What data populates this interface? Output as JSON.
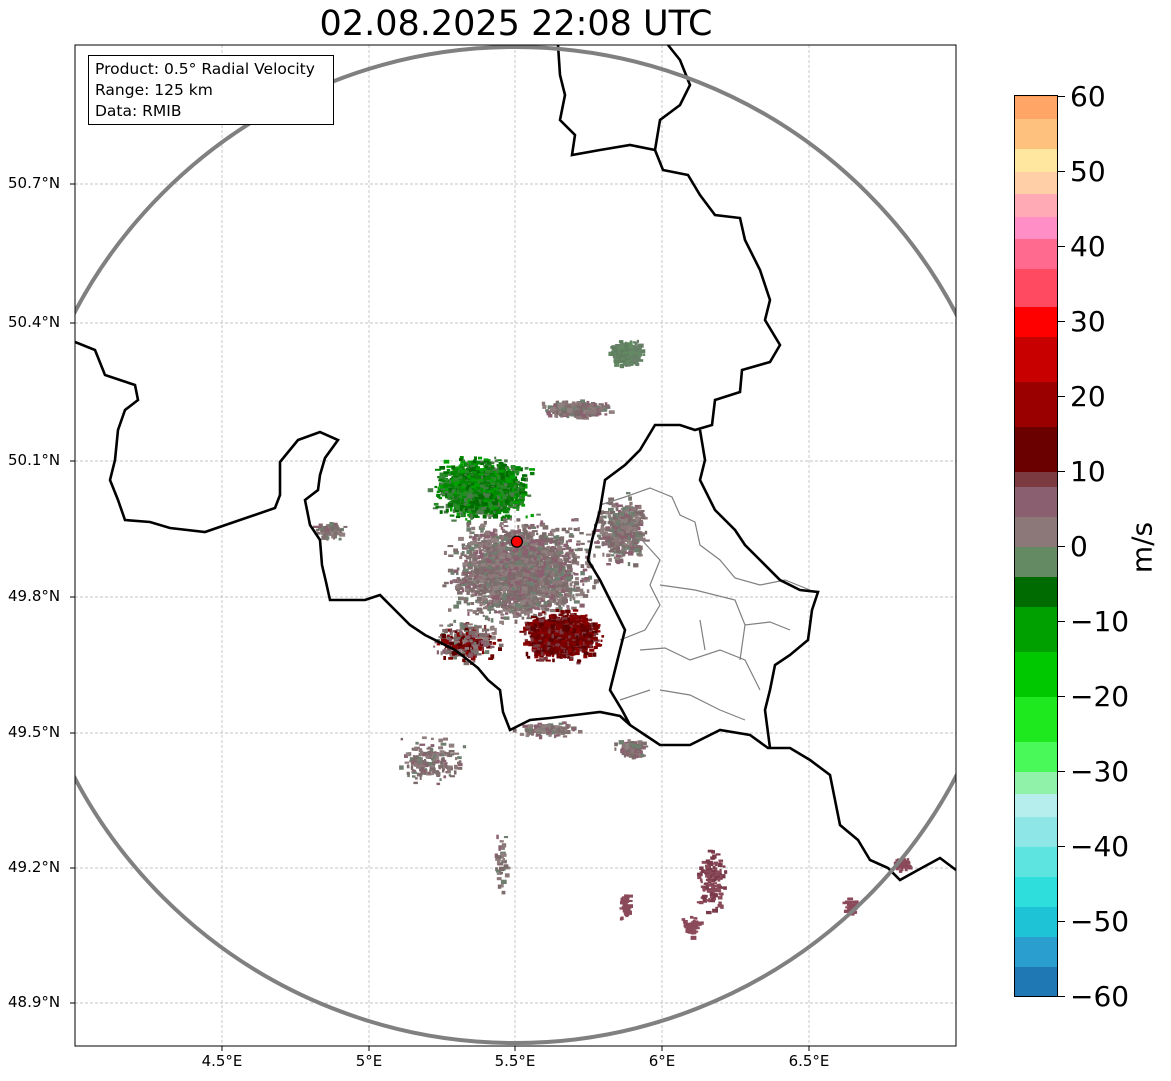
{
  "title": "02.08.2025 22:08 UTC",
  "info": {
    "product": "Product: 0.5° Radial Velocity",
    "range": "Range: 125 km",
    "source": "Data: RMIB"
  },
  "axes": {
    "lat_labels": [
      "50.7°N",
      "50.4°N",
      "50.1°N",
      "49.8°N",
      "49.5°N",
      "49.2°N",
      "48.9°N"
    ],
    "lon_labels": [
      "4.5°E",
      "5°E",
      "5.5°E",
      "6°E",
      "6.5°E"
    ]
  },
  "radar_site": {
    "lon": 5.505,
    "lat": 49.914,
    "color": "#ff0000"
  },
  "colorbar": {
    "unit": "m/s",
    "ticks": [
      "60",
      "50",
      "40",
      "30",
      "20",
      "10",
      "0",
      "−10",
      "−20",
      "−30",
      "−40",
      "−50",
      "−60"
    ],
    "min": -60,
    "max": 60,
    "stops": [
      {
        "v": -60,
        "c": "#1f77b4"
      },
      {
        "v": -56,
        "c": "#2a9fcf"
      },
      {
        "v": -52,
        "c": "#1fc3d6"
      },
      {
        "v": -48,
        "c": "#2ddedd"
      },
      {
        "v": -44,
        "c": "#5de3e0"
      },
      {
        "v": -40,
        "c": "#8ee6e6"
      },
      {
        "v": -36,
        "c": "#b6eeee"
      },
      {
        "v": -33,
        "c": "#8ff2a8"
      },
      {
        "v": -30,
        "c": "#49f95a"
      },
      {
        "v": -26,
        "c": "#1ee81e"
      },
      {
        "v": -20,
        "c": "#00c800"
      },
      {
        "v": -14,
        "c": "#00a000"
      },
      {
        "v": -8,
        "c": "#006b00"
      },
      {
        "v": -4,
        "c": "#648a64"
      },
      {
        "v": 0,
        "c": "#8c7878"
      },
      {
        "v": 4,
        "c": "#8a6070"
      },
      {
        "v": 8,
        "c": "#7a3a40"
      },
      {
        "v": 10,
        "c": "#6b0000"
      },
      {
        "v": 16,
        "c": "#9a0000"
      },
      {
        "v": 22,
        "c": "#c80000"
      },
      {
        "v": 28,
        "c": "#ff0000"
      },
      {
        "v": 32,
        "c": "#ff4a62"
      },
      {
        "v": 37,
        "c": "#ff6a8e"
      },
      {
        "v": 41,
        "c": "#ff8ec6"
      },
      {
        "v": 44,
        "c": "#ffaab4"
      },
      {
        "v": 47,
        "c": "#ffd0a8"
      },
      {
        "v": 50,
        "c": "#ffe7a0"
      },
      {
        "v": 53,
        "c": "#ffc27e"
      },
      {
        "v": 57,
        "c": "#ffa565"
      },
      {
        "v": 60,
        "c": "#ff9a55"
      }
    ]
  }
}
